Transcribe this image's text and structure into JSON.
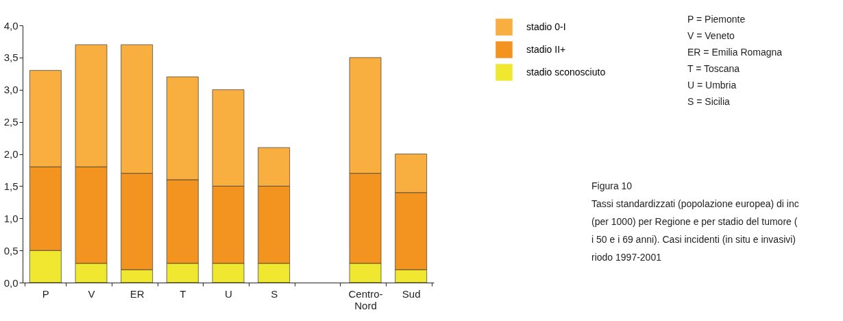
{
  "chart_data": {
    "type": "bar",
    "stacked": true,
    "categories": [
      "P",
      "V",
      "ER",
      "T",
      "U",
      "S",
      null,
      "Centro-Nord",
      "Sud"
    ],
    "series": [
      {
        "name": "stadio sconosciuto",
        "color": "#f0e830",
        "values": [
          0.5,
          0.3,
          0.2,
          0.3,
          0.3,
          0.3,
          null,
          0.3,
          0.2
        ]
      },
      {
        "name": "stadio II+",
        "color": "#f39420",
        "values": [
          1.3,
          1.5,
          1.5,
          1.3,
          1.2,
          1.2,
          null,
          1.4,
          1.2
        ]
      },
      {
        "name": "stadio 0-I",
        "color": "#f9ae40",
        "values": [
          1.5,
          1.9,
          2.0,
          1.6,
          1.5,
          0.6,
          null,
          1.8,
          0.6
        ]
      }
    ],
    "ylim": [
      0,
      4
    ],
    "yticks": [
      {
        "value": 0,
        "label": "0,0"
      },
      {
        "value": 0.5,
        "label": "0,5"
      },
      {
        "value": 1,
        "label": "1,0"
      },
      {
        "value": 1.5,
        "label": "1,5"
      },
      {
        "value": 2,
        "label": "2,0"
      },
      {
        "value": 2.5,
        "label": "2,5"
      },
      {
        "value": 3,
        "label": "3,0"
      },
      {
        "value": 3.5,
        "label": "3,5"
      },
      {
        "value": 4,
        "label": "4,0"
      }
    ],
    "grid": false,
    "legend": "right",
    "annotations": [
      "P = Piemonte",
      "V = Veneto",
      "ER = Emilia Romagna",
      "T = Toscana",
      "U = Umbria",
      "S = Sicilia",
      "Figura 10",
      "Tassi standardizzati (popolazione europea) di inc",
      "(per 1000) per Regione e per stadio del tumore (",
      "i 50 e i 69 anni). Casi incidenti (in situ e invasivi)",
      "riodo 1997-2001"
    ]
  }
}
